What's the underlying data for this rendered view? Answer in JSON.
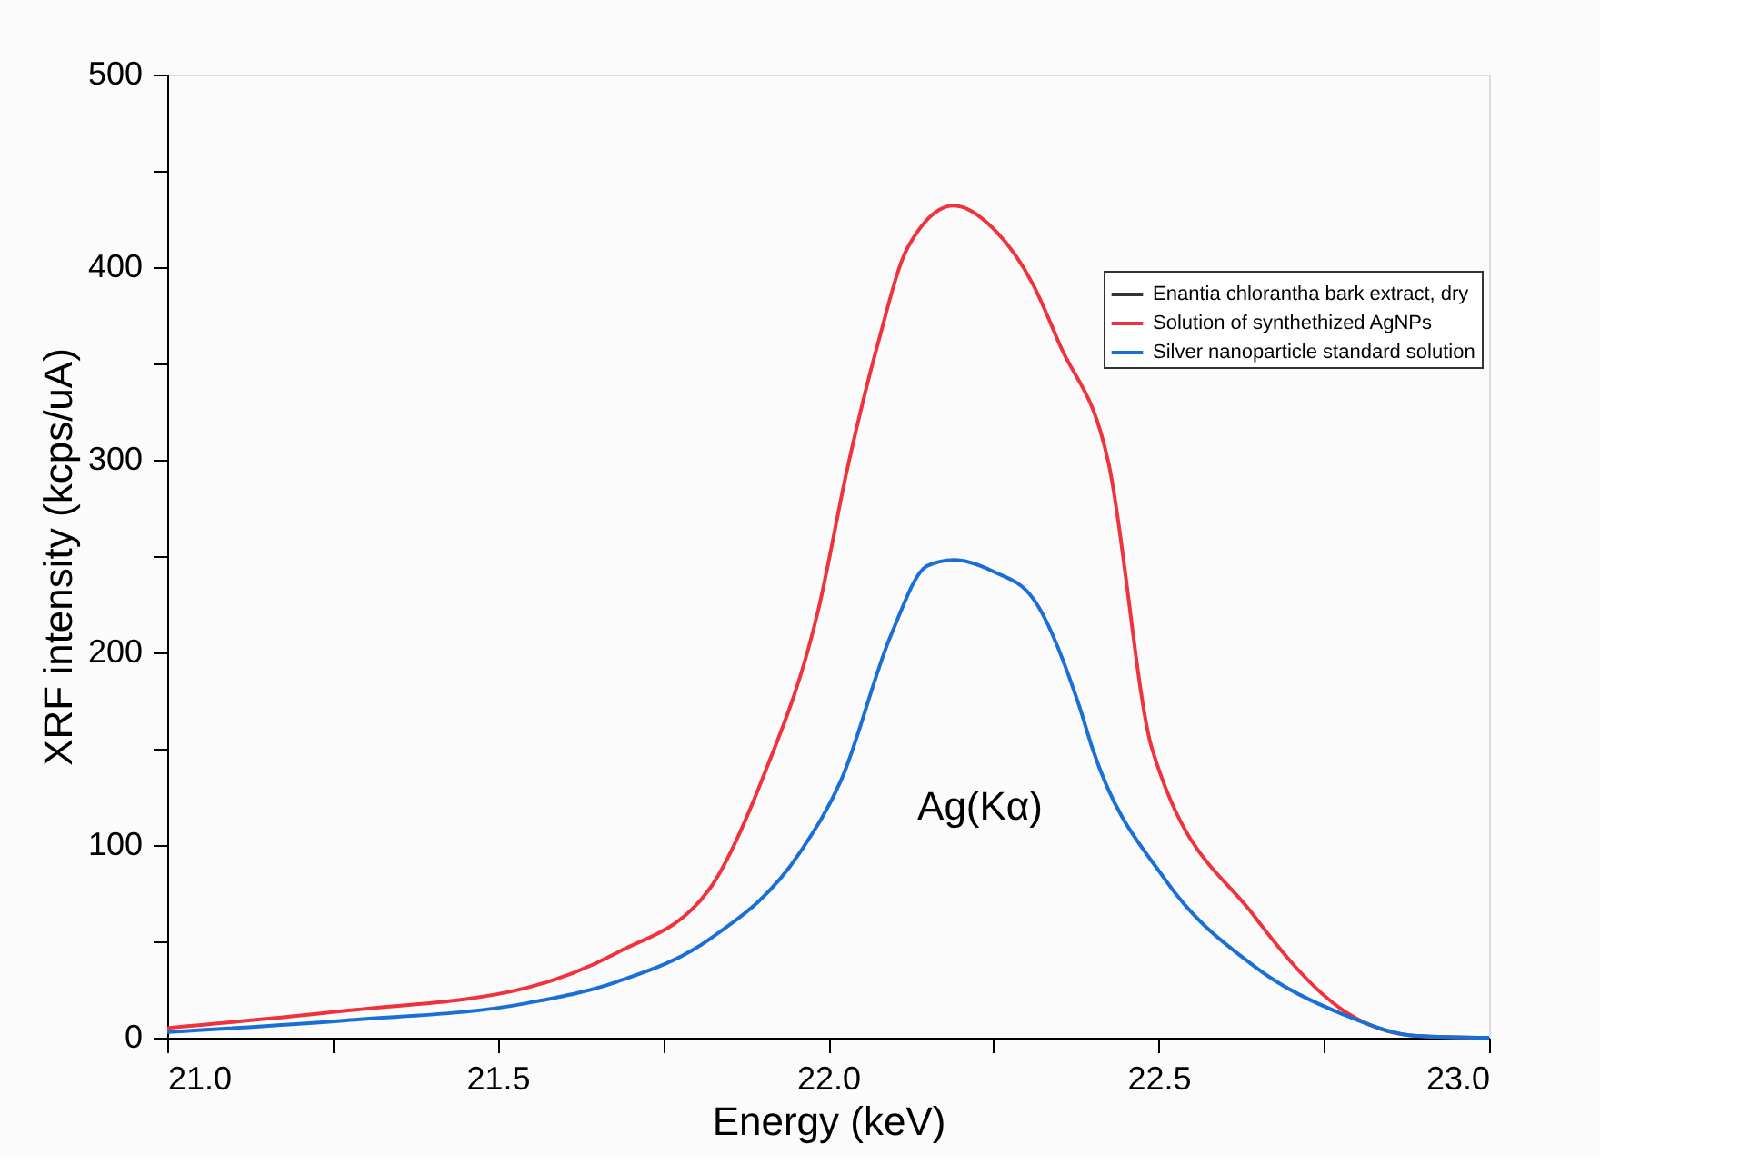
{
  "chart_data": {
    "type": "line",
    "xlabel": "Energy (keV)",
    "ylabel": "XRF intensity (kcps/uA)",
    "xlim": [
      21.0,
      23.0
    ],
    "ylim": [
      0,
      500
    ],
    "xticks": [
      {
        "value": 21.0,
        "label": "21.0"
      },
      {
        "value": 21.25,
        "label": null
      },
      {
        "value": 21.5,
        "label": "21.5"
      },
      {
        "value": 21.75,
        "label": null
      },
      {
        "value": 22.0,
        "label": "22.0"
      },
      {
        "value": 22.25,
        "label": null
      },
      {
        "value": 22.5,
        "label": "22.5"
      },
      {
        "value": 22.75,
        "label": null
      },
      {
        "value": 23.0,
        "label": "23.0"
      }
    ],
    "yticks": [
      0,
      {
        "value": 50,
        "label": null
      },
      100,
      {
        "value": 150,
        "label": null
      },
      200,
      {
        "value": 250,
        "label": null
      },
      300,
      {
        "value": 350,
        "label": null
      },
      400,
      {
        "value": 450,
        "label": null
      },
      500
    ],
    "grid": false,
    "legend": "top right",
    "marker": "none",
    "line_style": "solid",
    "annotations": [
      "Ag(Kα)"
    ],
    "series": [
      {
        "name": "Enantia chlorantha bark extract, dry",
        "color": "#333333"
      },
      {
        "name": "Solution of synthethized AgNPs",
        "color": "#f0323c",
        "x": [
          21.0,
          21.27,
          21.545,
          21.68,
          21.82,
          21.9,
          21.985,
          22.03,
          22.075,
          22.12,
          22.19,
          22.25,
          22.31,
          22.35,
          22.425,
          22.49,
          22.645,
          22.78,
          22.89,
          23.0
        ],
        "values": [
          5,
          14,
          26,
          44,
          77,
          134,
          222,
          297,
          360,
          410,
          432,
          420,
          391,
          360,
          297,
          150,
          63,
          14,
          1,
          0
        ]
      },
      {
        "name": "Silver nanoparticle standard solution",
        "color": "#1a6fd6",
        "x": [
          21.0,
          21.27,
          21.545,
          21.68,
          21.82,
          21.957,
          22.02,
          22.095,
          22.15,
          22.19,
          22.25,
          22.31,
          22.38,
          22.4,
          22.51,
          22.645,
          22.78,
          22.89,
          23.0
        ],
        "values": [
          3,
          9,
          18,
          29,
          51,
          96,
          134,
          209,
          245,
          248,
          242,
          228,
          172,
          150,
          82,
          37,
          12,
          1,
          0
        ]
      }
    ]
  }
}
